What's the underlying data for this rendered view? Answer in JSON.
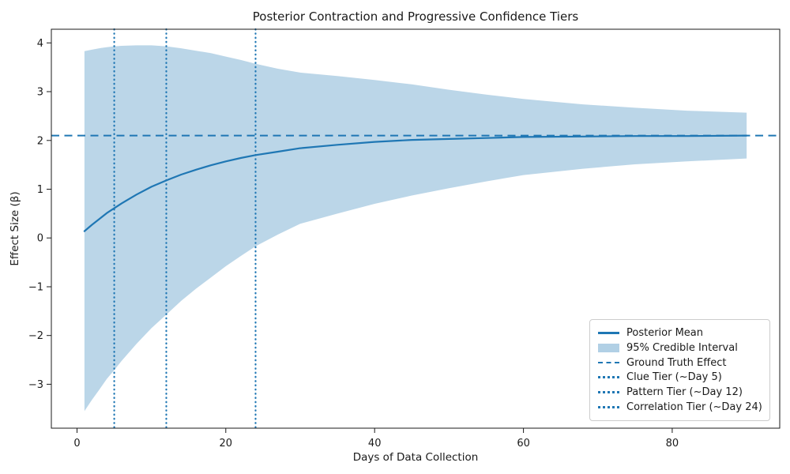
{
  "chart_data": {
    "type": "line",
    "title": "Posterior Contraction and Progressive Confidence Tiers",
    "xlabel": "Days of Data Collection",
    "ylabel": "Effect Size (β)",
    "xlim": [
      -3.45,
      94.45
    ],
    "ylim": [
      -3.9,
      4.28
    ],
    "xticks": [
      0,
      20,
      40,
      60,
      80
    ],
    "yticks": [
      -3,
      -2,
      -1,
      0,
      1,
      2,
      3,
      4
    ],
    "grid": false,
    "legend_position": "lower right",
    "accent_color": "#1f77b4",
    "band_fill": "rgba(31,119,180,0.3)",
    "days": [
      1,
      2,
      3,
      4,
      5,
      6,
      8,
      10,
      12,
      14,
      16,
      18,
      20,
      22,
      24,
      27,
      30,
      35,
      40,
      45,
      50,
      55,
      60,
      68,
      75,
      82,
      90
    ],
    "series": [
      {
        "name": "Posterior Mean",
        "style": "solid",
        "values": [
          0.14,
          0.27,
          0.39,
          0.51,
          0.61,
          0.71,
          0.89,
          1.05,
          1.18,
          1.3,
          1.4,
          1.49,
          1.57,
          1.64,
          1.7,
          1.77,
          1.84,
          1.91,
          1.97,
          2.01,
          2.03,
          2.05,
          2.07,
          2.08,
          2.09,
          2.09,
          2.1
        ]
      },
      {
        "name": "95% Credible Interval",
        "style": "band",
        "upper": [
          3.83,
          3.86,
          3.89,
          3.91,
          3.93,
          3.94,
          3.95,
          3.95,
          3.93,
          3.89,
          3.84,
          3.79,
          3.72,
          3.65,
          3.57,
          3.47,
          3.39,
          3.32,
          3.24,
          3.15,
          3.04,
          2.94,
          2.85,
          2.74,
          2.67,
          2.61,
          2.57
        ],
        "lower": [
          -3.55,
          -3.32,
          -3.11,
          -2.89,
          -2.71,
          -2.52,
          -2.17,
          -1.85,
          -1.57,
          -1.29,
          -1.04,
          -0.81,
          -0.58,
          -0.37,
          -0.17,
          0.07,
          0.29,
          0.5,
          0.7,
          0.87,
          1.02,
          1.16,
          1.29,
          1.42,
          1.51,
          1.57,
          1.63
        ]
      },
      {
        "name": "Ground Truth Effect",
        "style": "dashed",
        "y": 2.1
      }
    ],
    "tier_lines": [
      {
        "name": "Clue Tier (~Day 5)",
        "style": "dotted",
        "day": 5
      },
      {
        "name": "Pattern Tier (~Day 12)",
        "style": "dotted",
        "day": 12
      },
      {
        "name": "Correlation Tier (~Day 24)",
        "style": "dotted",
        "day": 24
      }
    ]
  }
}
